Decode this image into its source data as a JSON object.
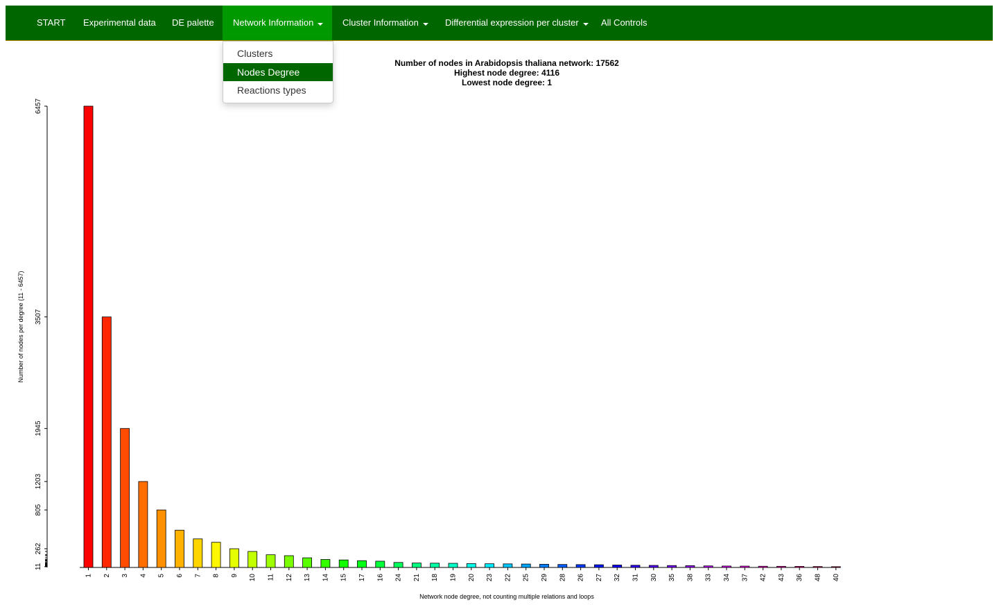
{
  "navbar": {
    "items": [
      {
        "label": "START",
        "dropdown": false,
        "active": false
      },
      {
        "label": "Experimental data",
        "dropdown": false,
        "active": false
      },
      {
        "label": "DE palette",
        "dropdown": false,
        "active": false
      },
      {
        "label": "Network Information",
        "dropdown": true,
        "active": true
      },
      {
        "label": "Cluster Information",
        "dropdown": true,
        "active": false
      },
      {
        "label": "Differential expression per cluster",
        "dropdown": true,
        "active": false
      },
      {
        "label": "All Controls",
        "dropdown": false,
        "active": false
      }
    ],
    "background": "#006600",
    "active_background": "#009900"
  },
  "dropdown": {
    "items": [
      {
        "label": "Clusters",
        "selected": false
      },
      {
        "label": "Nodes Degree",
        "selected": true
      },
      {
        "label": "Reactions types",
        "selected": false
      }
    ]
  },
  "chart_data": {
    "type": "bar",
    "title_lines": [
      "Number of nodes in Arabidopsis thaliana network: 17562",
      "Highest node degree: 4116",
      "Lowest node degree: 1"
    ],
    "xlabel": "Network node degree, not counting multiple relations and loops",
    "ylabel": "Number of nodes per degree (11 - 6457)",
    "yticks": [
      11,
      262,
      805,
      1203,
      1945,
      3507,
      6457
    ],
    "ylim": [
      0,
      6457
    ],
    "categories": [
      "1",
      "2",
      "3",
      "4",
      "5",
      "6",
      "7",
      "8",
      "9",
      "10",
      "11",
      "12",
      "13",
      "14",
      "15",
      "17",
      "16",
      "24",
      "21",
      "18",
      "19",
      "20",
      "23",
      "22",
      "25",
      "29",
      "28",
      "26",
      "27",
      "32",
      "31",
      "30",
      "35",
      "38",
      "33",
      "34",
      "37",
      "42",
      "43",
      "36",
      "48",
      "40"
    ],
    "values": [
      6457,
      3507,
      1945,
      1203,
      805,
      522,
      400,
      352,
      262,
      224,
      178,
      165,
      135,
      112,
      105,
      95,
      88,
      70,
      62,
      60,
      58,
      54,
      52,
      50,
      48,
      45,
      42,
      40,
      38,
      34,
      31,
      29,
      27,
      25,
      22,
      20,
      19,
      17,
      16,
      15,
      13,
      11
    ],
    "colors": [
      "#ff0000",
      "#ff2600",
      "#ff4c00",
      "#ff6f00",
      "#ff9100",
      "#ffb300",
      "#ffd500",
      "#fff700",
      "#e5ff00",
      "#c2ff00",
      "#9eff00",
      "#7bff00",
      "#57ff00",
      "#33ff00",
      "#10ff00",
      "#00ff14",
      "#00ff38",
      "#00ff5b",
      "#00ff80",
      "#00ffa3",
      "#00ffc7",
      "#00ffea",
      "#00ecff",
      "#00c8ff",
      "#00a5ff",
      "#0080ff",
      "#005dff",
      "#0038ff",
      "#0016ff",
      "#0c00ff",
      "#2f00ff",
      "#5300ff",
      "#7700ff",
      "#9b00ff",
      "#be00ff",
      "#e200ff",
      "#ff00f9",
      "#ff00d5",
      "#ff00b1",
      "#ff008e",
      "#ff006a",
      "#ff0047"
    ]
  }
}
